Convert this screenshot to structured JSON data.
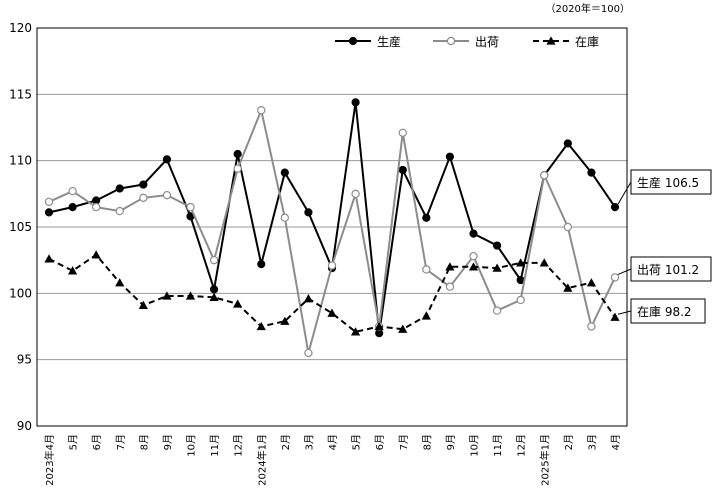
{
  "unit_note": "（2020年＝100）",
  "chart_data": {
    "type": "line",
    "ylim": [
      90,
      120
    ],
    "yticks": [
      90,
      95,
      100,
      105,
      110,
      115,
      120
    ],
    "grid": true,
    "legend_position": "top-right",
    "categories": [
      "2023年4月",
      "5月",
      "6月",
      "7月",
      "8月",
      "9月",
      "10月",
      "11月",
      "12月",
      "2024年1月",
      "2月",
      "3月",
      "4月",
      "5月",
      "6月",
      "7月",
      "8月",
      "9月",
      "10月",
      "11月",
      "12月",
      "2025年1月",
      "2月",
      "3月",
      "4月"
    ],
    "series": [
      {
        "name": "生産",
        "color": "#000000",
        "line": "solid",
        "marker": "filled-circle",
        "values": [
          106.1,
          106.5,
          107.0,
          107.9,
          108.2,
          110.1,
          105.8,
          100.3,
          110.5,
          102.2,
          109.1,
          106.1,
          101.9,
          114.4,
          97.0,
          109.3,
          105.7,
          110.3,
          104.5,
          103.6,
          101.0,
          108.9,
          111.3,
          109.1,
          106.5
        ],
        "end_label": "生産 106.5"
      },
      {
        "name": "出荷",
        "color": "#8c8c8c",
        "line": "solid",
        "marker": "open-circle",
        "values": [
          106.9,
          107.7,
          106.5,
          106.2,
          107.2,
          107.4,
          106.5,
          102.5,
          109.4,
          113.8,
          105.7,
          95.5,
          102.1,
          107.5,
          97.5,
          112.1,
          101.8,
          100.5,
          102.8,
          98.7,
          99.5,
          108.9,
          105.0,
          97.5,
          101.2
        ],
        "end_label": "出荷 101.2"
      },
      {
        "name": "在庫",
        "color": "#000000",
        "line": "dashed",
        "marker": "filled-triangle",
        "values": [
          102.6,
          101.7,
          102.9,
          100.8,
          99.1,
          99.8,
          99.8,
          99.7,
          99.2,
          97.5,
          97.9,
          99.6,
          98.5,
          97.1,
          97.5,
          97.3,
          98.3,
          102.0,
          102.0,
          101.9,
          102.3,
          102.3,
          100.4,
          100.8,
          98.2
        ],
        "end_label": "在庫 98.2"
      }
    ]
  }
}
